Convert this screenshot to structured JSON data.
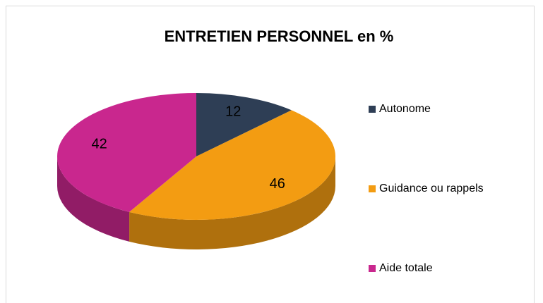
{
  "chart_data": {
    "type": "pie",
    "title": "ENTRETIEN PERSONNEL en %",
    "categories": [
      "Autonome",
      "Guidance ou rappels",
      "Aide totale"
    ],
    "values": [
      12,
      46,
      42
    ],
    "colors": [
      "#2e3e55",
      "#f39c12",
      "#c9278e"
    ],
    "legend": "right"
  }
}
